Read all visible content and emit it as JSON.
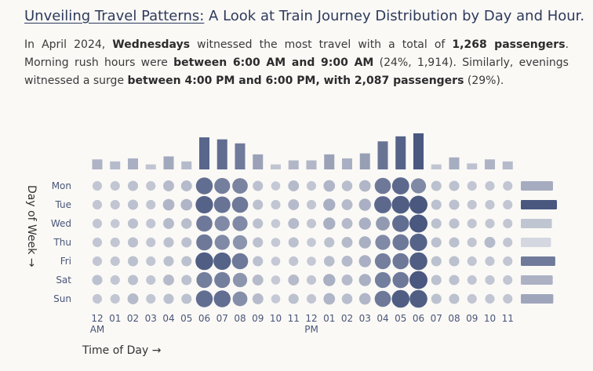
{
  "header": {
    "title_lead": "Unveiling Travel Patterns:",
    "title_rest": " A Look at Train Journey Distribution by Day and Hour."
  },
  "summary": {
    "t1": "In April 2024, ",
    "b1": "Wednesdays",
    "t2": " witnessed the most travel with a total of ",
    "b2": "1,268 passengers",
    "t3": ". Morning rush hours were ",
    "b3": "between 6:00 AM and 9:00 AM",
    "t4": " (24%, 1,914). Similarly, evenings witnessed a surge ",
    "b4": "between 4:00 PM and 6:00 PM, with 2,087 passengers",
    "t5": " (29%)."
  },
  "chart_data": {
    "type": "heatmap",
    "encoding": "bubble size and color = passenger count; top bars = hourly totals; right bars = daily totals",
    "xlabel": "Time of Day →",
    "ylabel": "Day of Week →",
    "x_tick_labels": [
      "12\nAM",
      "01",
      "02",
      "03",
      "04",
      "05",
      "06",
      "07",
      "08",
      "09",
      "10",
      "11",
      "12\nPM",
      "01",
      "02",
      "03",
      "04",
      "05",
      "06",
      "07",
      "08",
      "09",
      "10",
      "11"
    ],
    "days": [
      "Mon",
      "Tue",
      "Wed",
      "Thu",
      "Fri",
      "Sat",
      "Sun"
    ],
    "values": [
      [
        6,
        6,
        8,
        6,
        10,
        10,
        38,
        32,
        30,
        8,
        5,
        10,
        6,
        12,
        9,
        12,
        34,
        40,
        28,
        8,
        8,
        6,
        6,
        6
      ],
      [
        6,
        6,
        8,
        6,
        12,
        12,
        42,
        36,
        34,
        8,
        6,
        10,
        6,
        14,
        10,
        14,
        40,
        44,
        46,
        8,
        8,
        6,
        6,
        6
      ],
      [
        6,
        5,
        8,
        6,
        10,
        9,
        34,
        28,
        28,
        8,
        5,
        10,
        6,
        14,
        10,
        14,
        22,
        38,
        46,
        8,
        8,
        6,
        6,
        6
      ],
      [
        6,
        6,
        8,
        6,
        8,
        8,
        34,
        28,
        24,
        8,
        5,
        8,
        5,
        8,
        10,
        14,
        28,
        34,
        42,
        8,
        8,
        6,
        10,
        6
      ],
      [
        6,
        6,
        8,
        6,
        8,
        8,
        44,
        42,
        34,
        8,
        5,
        6,
        5,
        9,
        10,
        14,
        32,
        34,
        44,
        8,
        8,
        6,
        6,
        6
      ],
      [
        8,
        6,
        8,
        6,
        10,
        8,
        32,
        32,
        24,
        10,
        5,
        10,
        6,
        14,
        10,
        14,
        32,
        34,
        46,
        8,
        8,
        6,
        6,
        6
      ],
      [
        6,
        6,
        10,
        6,
        8,
        8,
        38,
        38,
        26,
        10,
        5,
        8,
        6,
        12,
        9,
        12,
        34,
        44,
        44,
        8,
        8,
        6,
        6,
        6
      ]
    ],
    "hour_totals": [
      100,
      80,
      110,
      50,
      130,
      80,
      320,
      300,
      260,
      150,
      50,
      90,
      90,
      150,
      110,
      160,
      280,
      330,
      360,
      50,
      120,
      60,
      100,
      80
    ],
    "day_totals": [
      1130,
      1268,
      1090,
      1060,
      1210,
      1120,
      1140
    ]
  }
}
